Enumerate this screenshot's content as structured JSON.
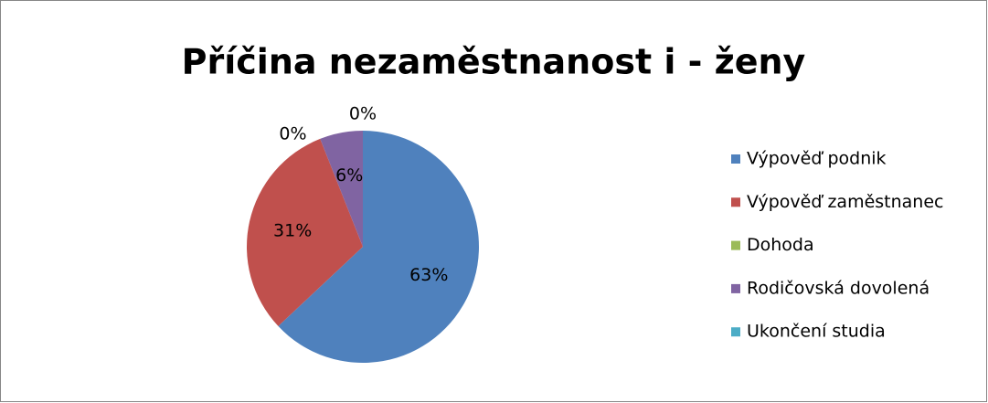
{
  "chart_data": {
    "type": "pie",
    "title": "Příčina nezaměstnanost i - ženy",
    "categories": [
      "Výpověď podnik",
      "Výpověď zaměstnanec",
      "Dohoda",
      "Rodičovská dovolená",
      "Ukončení studia"
    ],
    "values": [
      63,
      31,
      0,
      6,
      0
    ],
    "value_labels": [
      "63%",
      "31%",
      "0%",
      "6%",
      "0%"
    ],
    "colors": [
      "#4f81bd",
      "#c0504d",
      "#9bbb59",
      "#8064a2",
      "#4bacc6"
    ],
    "legend": "right"
  }
}
